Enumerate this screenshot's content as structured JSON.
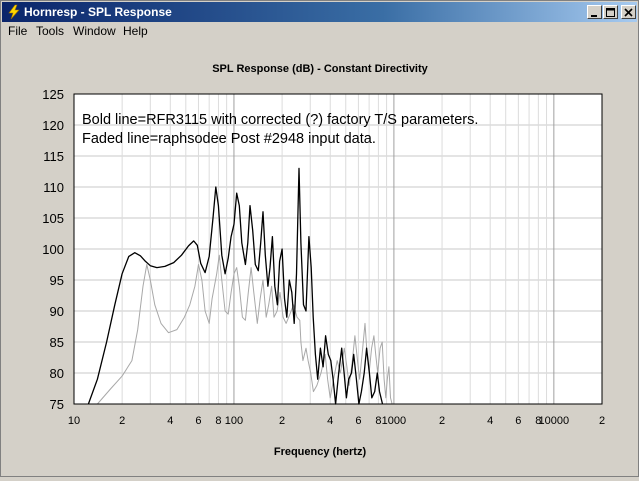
{
  "window": {
    "title": "Hornresp - SPL Response",
    "icon": "lightning-icon",
    "controls": [
      "minimize-icon",
      "maximize-icon",
      "close-icon"
    ]
  },
  "menu": {
    "items": [
      {
        "label": "File"
      },
      {
        "label": "Tools"
      },
      {
        "label": "Window"
      },
      {
        "label": "Help"
      }
    ]
  },
  "chart_data": {
    "type": "line",
    "title": "SPL Response (dB) - Constant Directivity",
    "xlabel": "Frequency (hertz)",
    "ylabel": "",
    "xscale": "log",
    "xlim": [
      10,
      20000
    ],
    "ylim": [
      75,
      125
    ],
    "grid": true,
    "y_ticks": [
      "125",
      "120",
      "115",
      "110",
      "105",
      "100",
      "95",
      "90",
      "85",
      "80",
      "75"
    ],
    "x_ticks": [
      {
        "value": 10,
        "label": "10"
      },
      {
        "value": 20,
        "label": "2"
      },
      {
        "value": 40,
        "label": "4"
      },
      {
        "value": 60,
        "label": "6"
      },
      {
        "value": 80,
        "label": "8"
      },
      {
        "value": 100,
        "label": "100"
      },
      {
        "value": 200,
        "label": "2"
      },
      {
        "value": 400,
        "label": "4"
      },
      {
        "value": 600,
        "label": "6"
      },
      {
        "value": 800,
        "label": "8"
      },
      {
        "value": 1000,
        "label": "1000"
      },
      {
        "value": 2000,
        "label": "2"
      },
      {
        "value": 4000,
        "label": "4"
      },
      {
        "value": 6000,
        "label": "6"
      },
      {
        "value": 8000,
        "label": "8"
      },
      {
        "value": 10000,
        "label": "10000"
      },
      {
        "value": 20000,
        "label": "2"
      }
    ],
    "annotations": [
      "Bold line=RFR3115 with corrected (?) factory T/S parameters.",
      "Faded line=raphsodee Post #2948 input data."
    ],
    "series": [
      {
        "style": "bold",
        "color": "#000000",
        "points": [
          [
            12.3,
            75
          ],
          [
            14,
            79
          ],
          [
            16,
            85
          ],
          [
            18,
            91
          ],
          [
            20,
            96
          ],
          [
            22,
            98.8
          ],
          [
            24,
            99.4
          ],
          [
            26,
            98.9
          ],
          [
            28,
            98
          ],
          [
            30,
            97.3
          ],
          [
            33,
            97
          ],
          [
            37,
            97.2
          ],
          [
            42,
            97.8
          ],
          [
            47,
            99
          ],
          [
            52,
            100.5
          ],
          [
            56,
            101.3
          ],
          [
            59,
            100.6
          ],
          [
            62,
            97.7
          ],
          [
            66,
            96.2
          ],
          [
            70,
            98.8
          ],
          [
            74,
            105
          ],
          [
            77,
            110
          ],
          [
            80,
            107
          ],
          [
            84,
            99
          ],
          [
            88,
            96
          ],
          [
            92,
            98.5
          ],
          [
            96,
            102
          ],
          [
            100,
            104
          ],
          [
            104,
            109
          ],
          [
            108,
            107
          ],
          [
            112,
            101
          ],
          [
            118,
            97.5
          ],
          [
            122,
            101
          ],
          [
            126,
            107
          ],
          [
            131,
            103
          ],
          [
            136,
            97.5
          ],
          [
            142,
            96.5
          ],
          [
            147,
            101
          ],
          [
            152,
            106
          ],
          [
            157,
            99
          ],
          [
            163,
            94
          ],
          [
            168,
            97
          ],
          [
            174,
            102
          ],
          [
            180,
            94
          ],
          [
            187,
            91
          ],
          [
            193,
            98
          ],
          [
            200,
            100
          ],
          [
            207,
            92
          ],
          [
            214,
            89
          ],
          [
            222,
            95
          ],
          [
            230,
            93
          ],
          [
            238,
            88
          ],
          [
            246,
            96
          ],
          [
            255,
            113
          ],
          [
            262,
            101
          ],
          [
            272,
            91
          ],
          [
            282,
            90
          ],
          [
            294,
            102
          ],
          [
            304,
            97
          ],
          [
            313,
            89
          ],
          [
            323,
            83
          ],
          [
            334,
            79
          ],
          [
            347,
            84
          ],
          [
            361,
            81
          ],
          [
            374,
            86
          ],
          [
            389,
            83
          ],
          [
            403,
            82
          ],
          [
            417,
            79
          ],
          [
            432,
            75
          ],
          [
            452,
            80
          ],
          [
            472,
            84
          ],
          [
            488,
            80
          ],
          [
            505,
            76
          ],
          [
            522,
            79
          ],
          [
            543,
            80
          ],
          [
            561,
            83
          ],
          [
            583,
            79
          ],
          [
            604,
            75
          ],
          [
            626,
            77
          ],
          [
            652,
            80
          ],
          [
            675,
            84
          ],
          [
            703,
            80
          ],
          [
            728,
            76
          ],
          [
            758,
            77
          ],
          [
            788,
            80
          ],
          [
            813,
            77
          ],
          [
            849,
            75
          ]
        ]
      },
      {
        "style": "faded",
        "color": "#a8a8a8",
        "points": [
          [
            14,
            75
          ],
          [
            17,
            77.5
          ],
          [
            20,
            79.5
          ],
          [
            23,
            82
          ],
          [
            25,
            87
          ],
          [
            27,
            94
          ],
          [
            28.5,
            97.5
          ],
          [
            30,
            95
          ],
          [
            32,
            91
          ],
          [
            35,
            88
          ],
          [
            39,
            86.5
          ],
          [
            44,
            87
          ],
          [
            49,
            89
          ],
          [
            53,
            91
          ],
          [
            57,
            94
          ],
          [
            60,
            97.5
          ],
          [
            63,
            95
          ],
          [
            66,
            90
          ],
          [
            70,
            88
          ],
          [
            73,
            92
          ],
          [
            78,
            96
          ],
          [
            81,
            99
          ],
          [
            84,
            95
          ],
          [
            88,
            90
          ],
          [
            92,
            89.5
          ],
          [
            96,
            93
          ],
          [
            100,
            96
          ],
          [
            104,
            97
          ],
          [
            108,
            94
          ],
          [
            113,
            89
          ],
          [
            118,
            88.5
          ],
          [
            123,
            93
          ],
          [
            128,
            97
          ],
          [
            133,
            93
          ],
          [
            140,
            88
          ],
          [
            146,
            92
          ],
          [
            152,
            95
          ],
          [
            159,
            89
          ],
          [
            165,
            91
          ],
          [
            172,
            94
          ],
          [
            178,
            89
          ],
          [
            186,
            90
          ],
          [
            194,
            93
          ],
          [
            203,
            89
          ],
          [
            212,
            88
          ],
          [
            220,
            89
          ],
          [
            236,
            91
          ],
          [
            248,
            89
          ],
          [
            258,
            88.5
          ],
          [
            262,
            85
          ],
          [
            270,
            82
          ],
          [
            282,
            84
          ],
          [
            291,
            82
          ],
          [
            302,
            80
          ],
          [
            314,
            77
          ],
          [
            330,
            78
          ],
          [
            350,
            80
          ],
          [
            372,
            83
          ],
          [
            385,
            79
          ],
          [
            400,
            76
          ],
          [
            420,
            79
          ],
          [
            442,
            82
          ],
          [
            463,
            80
          ],
          [
            490,
            84
          ],
          [
            508,
            81
          ],
          [
            525,
            78
          ],
          [
            545,
            81
          ],
          [
            570,
            86
          ],
          [
            592,
            82
          ],
          [
            610,
            79
          ],
          [
            633,
            83
          ],
          [
            660,
            88
          ],
          [
            680,
            83
          ],
          [
            700,
            80
          ],
          [
            725,
            84
          ],
          [
            750,
            86
          ],
          [
            770,
            83
          ],
          [
            792,
            80
          ],
          [
            820,
            84
          ],
          [
            845,
            85
          ],
          [
            868,
            79
          ],
          [
            890,
            76
          ],
          [
            910,
            79
          ],
          [
            930,
            81
          ],
          [
            952,
            76
          ],
          [
            975,
            75
          ]
        ]
      }
    ]
  }
}
